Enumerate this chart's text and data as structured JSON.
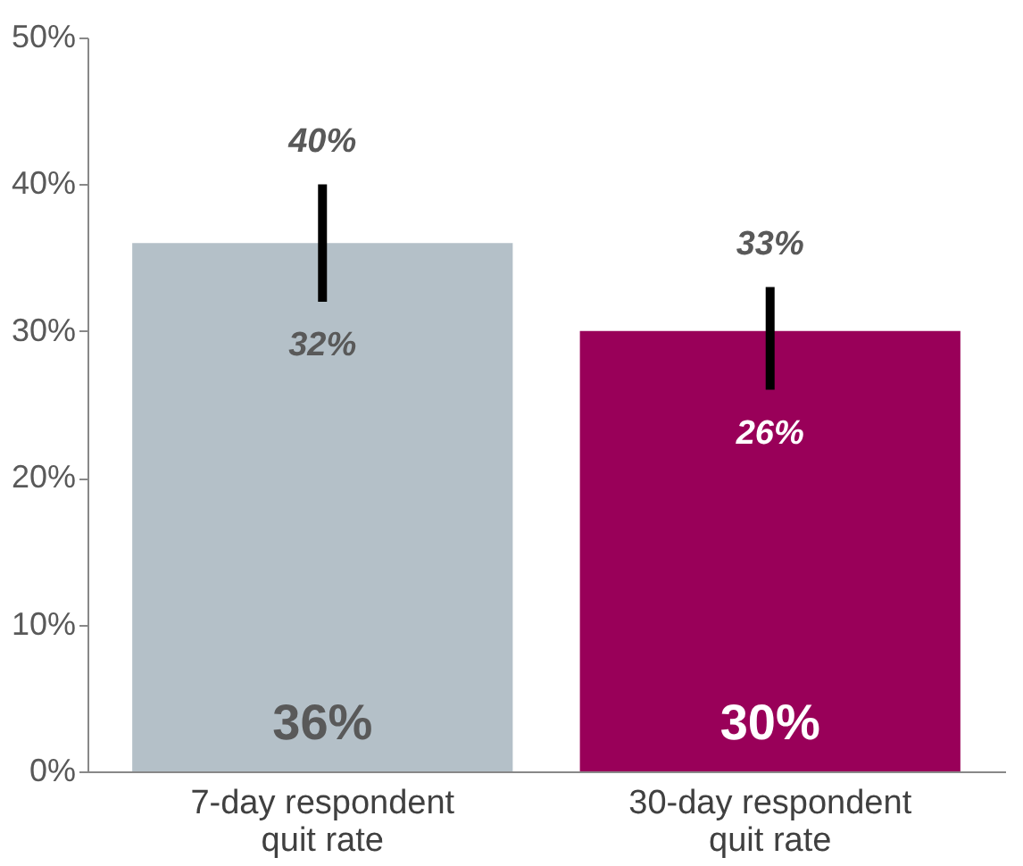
{
  "chart_data": {
    "type": "bar",
    "categories": [
      "7-day respondent\nquit rate",
      "30-day respondent\nquit rate"
    ],
    "values": [
      36,
      30
    ],
    "colors": [
      "#b4c0c8",
      "#990059"
    ],
    "value_labels": [
      "36%",
      "30%"
    ],
    "errors": [
      [
        32,
        40
      ],
      [
        26,
        33
      ]
    ],
    "annotations": [
      {
        "text": "40%",
        "x": "7-day respondent\nquit rate",
        "y": 40
      },
      {
        "text": "32%",
        "x": "7-day respondent\nquit rate",
        "y": 32
      },
      {
        "text": "33%",
        "x": "30-day respondent\nquit rate",
        "y": 33
      },
      {
        "text": "26%",
        "x": "30-day respondent\nquit rate",
        "y": 26
      }
    ],
    "ylim": [
      0,
      50
    ],
    "yticks": [
      {
        "value": 0,
        "label": "0%"
      },
      {
        "value": 10,
        "label": "10%"
      },
      {
        "value": 20,
        "label": "20%"
      },
      {
        "value": 30,
        "label": "30%"
      },
      {
        "value": 40,
        "label": "40%"
      },
      {
        "value": 50,
        "label": "50%"
      }
    ],
    "grid": false
  }
}
